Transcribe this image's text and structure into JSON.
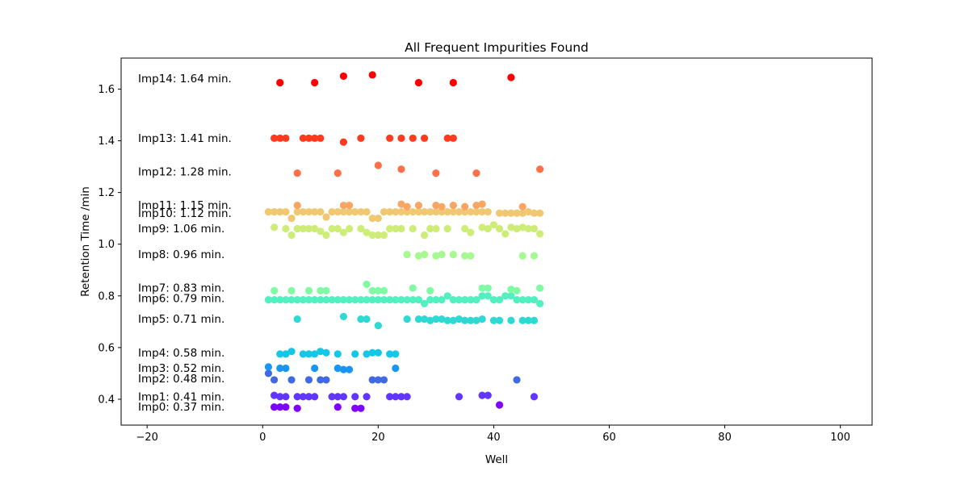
{
  "chart_data": {
    "type": "scatter",
    "title": "All Frequent Impurities Found",
    "xlabel": "Well",
    "ylabel": "Retention Time /min",
    "xlim": [
      -24.5,
      105.5
    ],
    "ylim": [
      0.3,
      1.72
    ],
    "xticks": [
      -20,
      0,
      20,
      40,
      60,
      80,
      100
    ],
    "yticks": [
      0.4,
      0.6,
      0.8,
      1.0,
      1.2,
      1.4,
      1.6
    ],
    "grid": false,
    "series": [
      {
        "label": "Imp0: 0.37 min.",
        "label_y": 0.37,
        "color": "#8000ff",
        "x": [
          2,
          3,
          4,
          6,
          13,
          16,
          17,
          41
        ],
        "y": [
          0.37,
          0.37,
          0.37,
          0.365,
          0.37,
          0.365,
          0.365,
          0.378
        ]
      },
      {
        "label": "Imp1: 0.41 min.",
        "label_y": 0.41,
        "color": "#6236fe",
        "x": [
          2,
          3,
          4,
          6,
          7,
          8,
          9,
          12,
          13,
          14,
          16,
          18,
          22,
          23,
          24,
          25,
          34,
          38,
          39,
          47
        ],
        "y": [
          0.415,
          0.41,
          0.41,
          0.41,
          0.41,
          0.41,
          0.41,
          0.41,
          0.41,
          0.41,
          0.41,
          0.41,
          0.41,
          0.41,
          0.41,
          0.41,
          0.41,
          0.415,
          0.415,
          0.41
        ]
      },
      {
        "label": "Imp2: 0.48 min.",
        "label_y": 0.48,
        "color": "#4169e2",
        "x": [
          1,
          2,
          5,
          8,
          10,
          11,
          19,
          20,
          21,
          44
        ],
        "y": [
          0.5,
          0.475,
          0.475,
          0.475,
          0.475,
          0.475,
          0.475,
          0.475,
          0.475,
          0.475
        ]
      },
      {
        "label": "Imp3: 0.52 min.",
        "label_y": 0.52,
        "color": "#1996f3",
        "x": [
          1,
          3,
          4,
          9,
          13,
          14,
          15,
          23
        ],
        "y": [
          0.525,
          0.52,
          0.52,
          0.52,
          0.52,
          0.515,
          0.515,
          0.52
        ]
      },
      {
        "label": "Imp4: 0.58 min.",
        "label_y": 0.58,
        "color": "#12c8e6",
        "x": [
          3,
          4,
          5,
          7,
          8,
          9,
          10,
          11,
          13,
          16,
          18,
          19,
          20,
          22,
          23
        ],
        "y": [
          0.575,
          0.575,
          0.585,
          0.575,
          0.575,
          0.575,
          0.585,
          0.58,
          0.575,
          0.575,
          0.575,
          0.58,
          0.58,
          0.575,
          0.575
        ]
      },
      {
        "label": "Imp5: 0.71 min.",
        "label_y": 0.71,
        "color": "#2ed9d4",
        "x": [
          6,
          14,
          17,
          18,
          20,
          25,
          27,
          28,
          29,
          30,
          31,
          32,
          33,
          34,
          35,
          36,
          37,
          38,
          40,
          41,
          43,
          45,
          46,
          47
        ],
        "y": [
          0.71,
          0.72,
          0.71,
          0.71,
          0.685,
          0.71,
          0.71,
          0.71,
          0.705,
          0.71,
          0.71,
          0.705,
          0.705,
          0.71,
          0.705,
          0.705,
          0.705,
          0.71,
          0.705,
          0.705,
          0.705,
          0.705,
          0.705,
          0.705
        ]
      },
      {
        "label": "Imp6: 0.79 min.",
        "label_y": 0.79,
        "color": "#52f0c0",
        "x": [
          1,
          2,
          3,
          4,
          5,
          6,
          7,
          8,
          9,
          10,
          11,
          12,
          13,
          14,
          15,
          16,
          17,
          18,
          19,
          20,
          21,
          22,
          23,
          24,
          25,
          26,
          27,
          28,
          29,
          30,
          31,
          32,
          33,
          34,
          35,
          36,
          37,
          38,
          39,
          40,
          41,
          42,
          43,
          44,
          45,
          46,
          47,
          48
        ],
        "y": [
          0.785,
          0.785,
          0.785,
          0.785,
          0.785,
          0.785,
          0.785,
          0.785,
          0.785,
          0.785,
          0.785,
          0.785,
          0.785,
          0.785,
          0.785,
          0.785,
          0.785,
          0.785,
          0.785,
          0.785,
          0.785,
          0.785,
          0.785,
          0.785,
          0.785,
          0.785,
          0.785,
          0.77,
          0.785,
          0.785,
          0.785,
          0.8,
          0.785,
          0.785,
          0.785,
          0.785,
          0.785,
          0.8,
          0.8,
          0.785,
          0.785,
          0.8,
          0.8,
          0.785,
          0.785,
          0.785,
          0.785,
          0.77
        ]
      },
      {
        "label": "Imp7: 0.83 min.",
        "label_y": 0.83,
        "color": "#80fba4",
        "x": [
          2,
          5,
          8,
          10,
          11,
          18,
          19,
          20,
          21,
          26,
          29,
          38,
          39,
          43,
          44,
          48
        ],
        "y": [
          0.82,
          0.82,
          0.82,
          0.82,
          0.82,
          0.845,
          0.82,
          0.82,
          0.82,
          0.83,
          0.82,
          0.83,
          0.83,
          0.825,
          0.82,
          0.83
        ]
      },
      {
        "label": "Imp8: 0.96 min.",
        "label_y": 0.96,
        "color": "#a6f990",
        "x": [
          25,
          27,
          28,
          30,
          31,
          33,
          35,
          36,
          45,
          47
        ],
        "y": [
          0.96,
          0.955,
          0.96,
          0.955,
          0.96,
          0.96,
          0.955,
          0.955,
          0.955,
          0.955
        ]
      },
      {
        "label": "Imp9: 1.06 min.",
        "label_y": 1.06,
        "color": "#cded78",
        "x": [
          2,
          4,
          5,
          6,
          7,
          8,
          9,
          10,
          11,
          12,
          13,
          14,
          15,
          17,
          18,
          19,
          20,
          21,
          22,
          23,
          24,
          26,
          28,
          29,
          30,
          32,
          35,
          36,
          38,
          39,
          40,
          41,
          42,
          43,
          44,
          45,
          46,
          47,
          48
        ],
        "y": [
          1.065,
          1.06,
          1.035,
          1.06,
          1.06,
          1.06,
          1.06,
          1.05,
          1.035,
          1.06,
          1.06,
          1.045,
          1.06,
          1.06,
          1.045,
          1.035,
          1.035,
          1.035,
          1.06,
          1.06,
          1.06,
          1.06,
          1.035,
          1.06,
          1.06,
          1.06,
          1.06,
          1.045,
          1.065,
          1.06,
          1.075,
          1.06,
          1.04,
          1.065,
          1.06,
          1.065,
          1.06,
          1.06,
          1.04
        ]
      },
      {
        "label": "Imp10: 1.12 min.",
        "label_y": 1.12,
        "color": "#f0c872",
        "x": [
          1,
          2,
          3,
          4,
          5,
          6,
          7,
          8,
          9,
          10,
          11,
          12,
          13,
          14,
          15,
          16,
          17,
          18,
          19,
          20,
          21,
          22,
          23,
          24,
          25,
          26,
          27,
          28,
          29,
          30,
          31,
          32,
          33,
          34,
          35,
          36,
          37,
          38,
          39,
          41,
          42,
          43,
          44,
          45,
          46,
          47,
          48
        ],
        "y": [
          1.125,
          1.125,
          1.125,
          1.125,
          1.1,
          1.125,
          1.125,
          1.125,
          1.125,
          1.125,
          1.105,
          1.125,
          1.125,
          1.125,
          1.125,
          1.125,
          1.125,
          1.125,
          1.1,
          1.1,
          1.125,
          1.125,
          1.125,
          1.125,
          1.125,
          1.125,
          1.125,
          1.125,
          1.125,
          1.125,
          1.125,
          1.125,
          1.125,
          1.125,
          1.125,
          1.125,
          1.125,
          1.125,
          1.125,
          1.12,
          1.12,
          1.12,
          1.12,
          1.12,
          1.125,
          1.12,
          1.12
        ]
      },
      {
        "label": "Imp11: 1.15 min.",
        "label_y": 1.15,
        "color": "#f9a665",
        "x": [
          6,
          14,
          15,
          24,
          25,
          27,
          30,
          31,
          33,
          35,
          37,
          38,
          45
        ],
        "y": [
          1.15,
          1.15,
          1.15,
          1.155,
          1.145,
          1.15,
          1.15,
          1.145,
          1.15,
          1.145,
          1.15,
          1.155,
          1.145
        ]
      },
      {
        "label": "Imp12: 1.28 min.",
        "label_y": 1.28,
        "color": "#fd7048",
        "x": [
          6,
          13,
          20,
          24,
          30,
          37,
          48
        ],
        "y": [
          1.275,
          1.275,
          1.305,
          1.29,
          1.275,
          1.275,
          1.29
        ]
      },
      {
        "label": "Imp13: 1.41 min.",
        "label_y": 1.41,
        "color": "#ff3a1e",
        "x": [
          2,
          3,
          4,
          7,
          8,
          9,
          10,
          14,
          17,
          22,
          24,
          26,
          28,
          32,
          33
        ],
        "y": [
          1.41,
          1.41,
          1.41,
          1.41,
          1.41,
          1.41,
          1.41,
          1.395,
          1.41,
          1.41,
          1.41,
          1.41,
          1.41,
          1.41,
          1.41
        ]
      },
      {
        "label": "Imp14: 1.64 min.",
        "label_y": 1.64,
        "color": "#ff0000",
        "x": [
          3,
          9,
          14,
          19,
          27,
          33,
          43
        ],
        "y": [
          1.625,
          1.625,
          1.65,
          1.655,
          1.625,
          1.625,
          1.645
        ]
      }
    ]
  }
}
